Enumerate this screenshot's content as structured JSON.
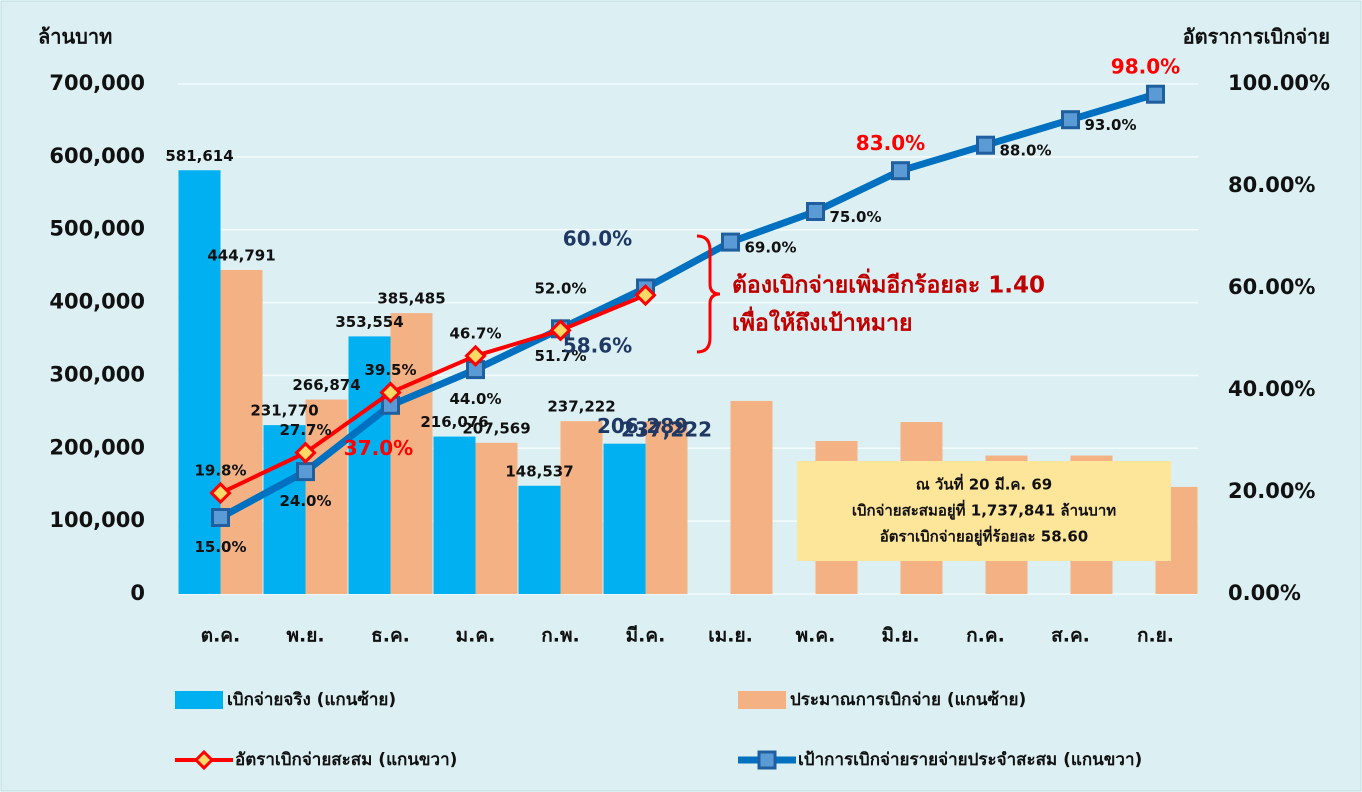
{
  "chart_data": {
    "type": "bar",
    "y_label": "ล้านบาท",
    "y2_label": "อัตราการเบิกจ่าย",
    "categories": [
      "ต.ค.",
      "พ.ย.",
      "ธ.ค.",
      "ม.ค.",
      "ก.พ.",
      "มี.ค.",
      "เม.ย.",
      "พ.ค.",
      "มิ.ย.",
      "ก.ค.",
      "ส.ค.",
      "ก.ย."
    ],
    "series": [
      {
        "name": "เบิกจ่ายจริง (แกนซ้าย)",
        "type": "bar",
        "color": "#00b0f0",
        "values": [
          581614,
          231770,
          353554,
          216076,
          148537,
          206289,
          null,
          null,
          null,
          null,
          null,
          null
        ],
        "value_labels": [
          "581,614",
          "231,770",
          "353,554",
          "216,076",
          "148,537",
          "206,289",
          null,
          null,
          null,
          null,
          null,
          null
        ]
      },
      {
        "name": "ประมาณการเบิกจ่าย (แกนซ้าย)",
        "type": "bar",
        "color": "#f4b183",
        "values": [
          444791,
          266874,
          385485,
          207569,
          237222,
          237222,
          265000,
          210000,
          236000,
          190000,
          190000,
          147000
        ],
        "value_labels": [
          "444,791",
          "266,874",
          "385,485",
          "207,569",
          "237,222",
          "237,222",
          null,
          null,
          null,
          null,
          null,
          null
        ]
      },
      {
        "name": "อัตราเบิกจ่ายสะสม (แกนขวา)",
        "type": "line",
        "axis": "y2",
        "color": "#ff0000",
        "values": [
          19.8,
          27.7,
          39.5,
          46.7,
          51.7,
          58.6,
          null,
          null,
          null,
          null,
          null,
          null
        ],
        "value_labels": [
          "19.8%",
          "27.7%",
          "39.5%",
          "46.7%",
          "51.7%",
          "58.6%",
          null,
          null,
          null,
          null,
          null,
          null
        ]
      },
      {
        "name": "เป้าการเบิกจ่ายรายจ่ายประจำสะสม (แกนขวา)",
        "type": "line",
        "axis": "y2",
        "color": "#0070c0",
        "values": [
          15.0,
          24.0,
          37.0,
          44.0,
          52.0,
          60.0,
          69.0,
          75.0,
          83.0,
          88.0,
          93.0,
          98.0
        ],
        "value_labels": [
          "15.0%",
          "24.0%",
          "37.0%",
          "44.0%",
          "52.0%",
          "60.0%",
          "69.0%",
          "75.0%",
          "83.0%",
          "88.0%",
          "93.0%",
          "98.0%"
        ]
      }
    ],
    "ylim": [
      0,
      700000
    ],
    "yticks": [
      0,
      {
        "value": 100000,
        "label": "100,000"
      },
      {
        "value": 200000,
        "label": "200,000"
      },
      {
        "value": 300000,
        "label": "300,000"
      },
      {
        "value": 400000,
        "label": "400,000"
      },
      {
        "value": 500000,
        "label": "500,000"
      },
      {
        "value": 600000,
        "label": "600,000"
      },
      {
        "value": 700000,
        "label": "700,000"
      }
    ],
    "y2lim": [
      0,
      100
    ],
    "y2ticks": [
      {
        "value": 0,
        "label": "0.00%"
      },
      {
        "value": 20,
        "label": "20.00%"
      },
      {
        "value": 40,
        "label": "40.00%"
      },
      {
        "value": 60,
        "label": "60.00%"
      },
      {
        "value": 80,
        "label": "80.00%"
      },
      {
        "value": 100,
        "label": "100.00%"
      }
    ],
    "grid": true,
    "annotations": [
      "ต้องเบิกจ่ายเพิ่มอีกร้อยละ 1.40",
      "เพื่อให้ถึงเป้าหมาย"
    ],
    "note_box": [
      "ณ วันที่ 20 มี.ค. 69",
      "เบิกจ่ายสะสมอยู่ที่ 1,737,841 ล้านบาท",
      "อัตราเบิกจ่ายอยู่ที่ร้อยละ 58.60"
    ]
  }
}
